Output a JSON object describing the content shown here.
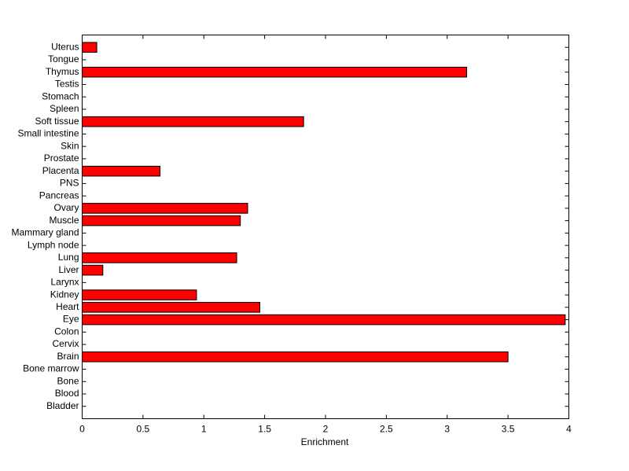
{
  "chart_data": {
    "type": "barh",
    "xlabel": "Enrichment",
    "categories": [
      "Bladder",
      "Blood",
      "Bone",
      "Bone marrow",
      "Brain",
      "Cervix",
      "Colon",
      "Eye",
      "Heart",
      "Kidney",
      "Larynx",
      "Liver",
      "Lung",
      "Lymph node",
      "Mammary gland",
      "Muscle",
      "Ovary",
      "Pancreas",
      "PNS",
      "Placenta",
      "Prostate",
      "Skin",
      "Small intestine",
      "Soft tissue",
      "Spleen",
      "Stomach",
      "Testis",
      "Thymus",
      "Tongue",
      "Uterus"
    ],
    "values": [
      0,
      0,
      0,
      0,
      3.5,
      0,
      0,
      3.97,
      1.46,
      0.94,
      0,
      0.17,
      1.27,
      0,
      0,
      1.3,
      1.36,
      0,
      0,
      0.64,
      0,
      0,
      0,
      1.82,
      0,
      0,
      0,
      3.16,
      0,
      0.12
    ],
    "color": "#ff0000",
    "xlim": [
      0,
      4
    ],
    "xticks": [
      0,
      0.5,
      1,
      1.5,
      2,
      2.5,
      3,
      3.5,
      4
    ],
    "grid": false
  }
}
